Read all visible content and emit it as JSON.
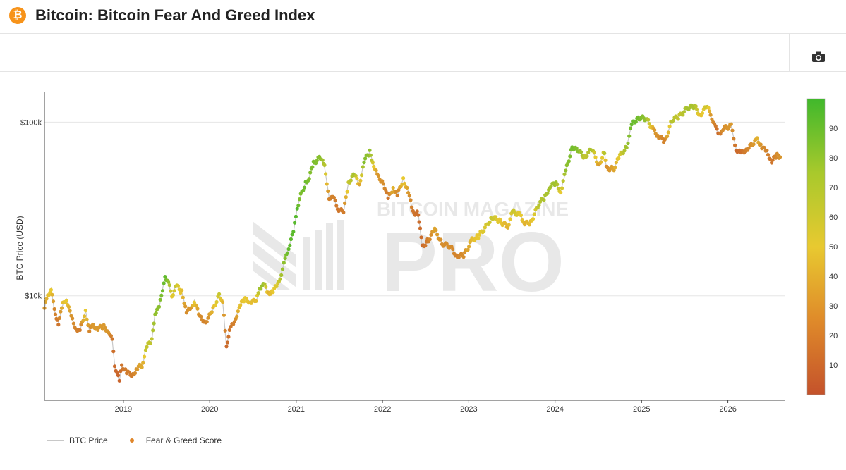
{
  "header": {
    "logo_glyph": "₿",
    "title": "Bitcoin: Bitcoin Fear And Greed Index"
  },
  "toolbar": {
    "camera_icon": "camera-icon"
  },
  "watermark": {
    "line1": "BITCOIN MAGAZINE",
    "line2": "PRO"
  },
  "legend": {
    "price_label": "BTC Price",
    "score_label": "Fear & Greed Score"
  },
  "colors": {
    "fear": "#c4522b",
    "neutral": "#e8c930",
    "greed": "#40b82c",
    "price_line": "#c8c8c8"
  },
  "chart_data": {
    "type": "scatter",
    "ylabel": "BTC Price (USD)",
    "yscale": "log",
    "ylim": [
      2500,
      150000
    ],
    "xlim": [
      "2018-02-01",
      "2026-09-01"
    ],
    "x_ticks": [
      "2019",
      "2020",
      "2021",
      "2022",
      "2023",
      "2024",
      "2025",
      "2026"
    ],
    "y_ticks": [
      {
        "value": 10000,
        "label": "$10k"
      },
      {
        "value": 100000,
        "label": "$100k"
      }
    ],
    "colorbar": {
      "range": [
        0,
        100
      ],
      "ticks": [
        "10",
        "20",
        "30",
        "40",
        "50",
        "60",
        "70",
        "80",
        "90"
      ]
    },
    "series": [
      {
        "name": "BTC Price / Fear & Greed Score",
        "points": [
          [
            "2018-02-01",
            8500,
            30
          ],
          [
            "2018-02-15",
            10000,
            45
          ],
          [
            "2018-03-01",
            11000,
            50
          ],
          [
            "2018-03-15",
            8200,
            22
          ],
          [
            "2018-04-01",
            7000,
            15
          ],
          [
            "2018-04-20",
            8900,
            45
          ],
          [
            "2018-05-05",
            9600,
            50
          ],
          [
            "2018-05-25",
            7500,
            28
          ],
          [
            "2018-06-15",
            6500,
            20
          ],
          [
            "2018-07-01",
            6300,
            18
          ],
          [
            "2018-07-25",
            8200,
            50
          ],
          [
            "2018-08-10",
            6300,
            22
          ],
          [
            "2018-08-25",
            6700,
            30
          ],
          [
            "2018-09-15",
            6500,
            30
          ],
          [
            "2018-10-10",
            6600,
            30
          ],
          [
            "2018-10-30",
            6300,
            28
          ],
          [
            "2018-11-15",
            5500,
            15
          ],
          [
            "2018-11-25",
            4000,
            10
          ],
          [
            "2018-12-15",
            3200,
            8
          ],
          [
            "2018-12-25",
            4000,
            15
          ],
          [
            "2019-01-15",
            3600,
            18
          ],
          [
            "2019-02-10",
            3500,
            18
          ],
          [
            "2019-03-01",
            3850,
            30
          ],
          [
            "2019-03-25",
            4000,
            40
          ],
          [
            "2019-04-05",
            5000,
            60
          ],
          [
            "2019-05-01",
            5500,
            62
          ],
          [
            "2019-05-15",
            8000,
            75
          ],
          [
            "2019-06-01",
            8500,
            78
          ],
          [
            "2019-06-26",
            13000,
            90
          ],
          [
            "2019-07-10",
            12000,
            75
          ],
          [
            "2019-07-25",
            9800,
            50
          ],
          [
            "2019-08-10",
            11500,
            60
          ],
          [
            "2019-09-05",
            10500,
            45
          ],
          [
            "2019-09-25",
            8200,
            25
          ],
          [
            "2019-10-15",
            8300,
            30
          ],
          [
            "2019-10-28",
            9400,
            50
          ],
          [
            "2019-11-20",
            7500,
            25
          ],
          [
            "2019-12-15",
            7100,
            20
          ],
          [
            "2020-01-10",
            8000,
            40
          ],
          [
            "2020-02-10",
            10200,
            60
          ],
          [
            "2020-02-25",
            9300,
            40
          ],
          [
            "2020-03-12",
            5000,
            10
          ],
          [
            "2020-03-25",
            6500,
            15
          ],
          [
            "2020-04-15",
            6900,
            20
          ],
          [
            "2020-05-05",
            8800,
            45
          ],
          [
            "2020-05-30",
            9500,
            50
          ],
          [
            "2020-06-20",
            9300,
            45
          ],
          [
            "2020-07-15",
            9200,
            45
          ],
          [
            "2020-07-30",
            11000,
            70
          ],
          [
            "2020-08-15",
            11800,
            75
          ],
          [
            "2020-09-05",
            10300,
            40
          ],
          [
            "2020-09-25",
            10700,
            50
          ],
          [
            "2020-10-15",
            11500,
            55
          ],
          [
            "2020-10-30",
            13500,
            70
          ],
          [
            "2020-11-15",
            16000,
            80
          ],
          [
            "2020-11-30",
            19000,
            90
          ],
          [
            "2020-12-20",
            23000,
            92
          ],
          [
            "2021-01-05",
            32000,
            94
          ],
          [
            "2021-01-15",
            36000,
            80
          ],
          [
            "2021-02-10",
            45000,
            88
          ],
          [
            "2021-02-25",
            48000,
            80
          ],
          [
            "2021-03-15",
            58000,
            82
          ],
          [
            "2021-04-14",
            63000,
            78
          ],
          [
            "2021-05-01",
            55000,
            65
          ],
          [
            "2021-05-20",
            37000,
            20
          ],
          [
            "2021-06-10",
            36000,
            20
          ],
          [
            "2021-06-25",
            32000,
            15
          ],
          [
            "2021-07-20",
            30000,
            18
          ],
          [
            "2021-08-10",
            45000,
            60
          ],
          [
            "2021-09-05",
            50000,
            70
          ],
          [
            "2021-09-25",
            43000,
            35
          ],
          [
            "2021-10-15",
            60000,
            80
          ],
          [
            "2021-11-08",
            67000,
            75
          ],
          [
            "2021-11-25",
            57000,
            50
          ],
          [
            "2021-12-10",
            49000,
            30
          ],
          [
            "2022-01-05",
            45000,
            25
          ],
          [
            "2022-01-25",
            36000,
            15
          ],
          [
            "2022-02-15",
            42000,
            40
          ],
          [
            "2022-03-05",
            38000,
            20
          ],
          [
            "2022-03-30",
            47000,
            50
          ],
          [
            "2022-04-20",
            40000,
            30
          ],
          [
            "2022-05-10",
            30000,
            15
          ],
          [
            "2022-06-01",
            30000,
            12
          ],
          [
            "2022-06-18",
            19000,
            10
          ],
          [
            "2022-07-15",
            21000,
            20
          ],
          [
            "2022-08-10",
            24000,
            35
          ],
          [
            "2022-09-10",
            20000,
            25
          ],
          [
            "2022-10-15",
            19200,
            25
          ],
          [
            "2022-11-10",
            17000,
            20
          ],
          [
            "2022-12-10",
            17000,
            25
          ],
          [
            "2023-01-15",
            21000,
            45
          ],
          [
            "2023-02-10",
            22000,
            50
          ],
          [
            "2023-03-15",
            25000,
            55
          ],
          [
            "2023-04-10",
            28500,
            60
          ],
          [
            "2023-05-10",
            27000,
            50
          ],
          [
            "2023-06-15",
            25000,
            40
          ],
          [
            "2023-07-05",
            30500,
            60
          ],
          [
            "2023-08-10",
            29000,
            50
          ],
          [
            "2023-08-25",
            26000,
            40
          ],
          [
            "2023-09-20",
            26500,
            45
          ],
          [
            "2023-10-25",
            34000,
            65
          ],
          [
            "2023-11-20",
            37000,
            68
          ],
          [
            "2023-12-10",
            43000,
            70
          ],
          [
            "2024-01-05",
            44000,
            72
          ],
          [
            "2024-01-25",
            40000,
            50
          ],
          [
            "2024-02-15",
            52000,
            75
          ],
          [
            "2024-03-13",
            72000,
            85
          ],
          [
            "2024-04-10",
            68000,
            78
          ],
          [
            "2024-05-05",
            63000,
            60
          ],
          [
            "2024-06-05",
            70000,
            70
          ],
          [
            "2024-07-05",
            56000,
            30
          ],
          [
            "2024-07-28",
            68000,
            65
          ],
          [
            "2024-08-05",
            54000,
            25
          ],
          [
            "2024-09-06",
            54000,
            35
          ],
          [
            "2024-10-01",
            64000,
            55
          ],
          [
            "2024-10-30",
            72000,
            72
          ],
          [
            "2024-11-20",
            97000,
            88
          ],
          [
            "2024-12-17",
            106000,
            85
          ],
          [
            "2025-01-20",
            105000,
            75
          ],
          [
            "2025-02-25",
            88000,
            30
          ],
          [
            "2025-03-15",
            83000,
            25
          ],
          [
            "2025-04-09",
            77000,
            20
          ],
          [
            "2025-05-10",
            103000,
            65
          ],
          [
            "2025-06-10",
            108000,
            60
          ],
          [
            "2025-07-14",
            121000,
            70
          ],
          [
            "2025-08-14",
            123000,
            68
          ],
          [
            "2025-09-05",
            110000,
            45
          ],
          [
            "2025-10-06",
            124000,
            60
          ],
          [
            "2025-10-20",
            108000,
            30
          ],
          [
            "2025-11-05",
            100000,
            20
          ],
          [
            "2025-11-21",
            84000,
            10
          ],
          [
            "2025-12-10",
            92000,
            25
          ],
          [
            "2026-01-15",
            95000,
            30
          ],
          [
            "2026-02-05",
            70000,
            10
          ],
          [
            "2026-02-25",
            66000,
            12
          ],
          [
            "2026-03-20",
            70000,
            20
          ],
          [
            "2026-04-20",
            75000,
            30
          ],
          [
            "2026-05-05",
            80000,
            40
          ],
          [
            "2026-05-25",
            72000,
            25
          ],
          [
            "2026-06-15",
            67000,
            20
          ],
          [
            "2026-07-05",
            60000,
            15
          ],
          [
            "2026-07-28",
            64000,
            25
          ],
          [
            "2026-08-10",
            63000,
            28
          ]
        ]
      }
    ]
  }
}
